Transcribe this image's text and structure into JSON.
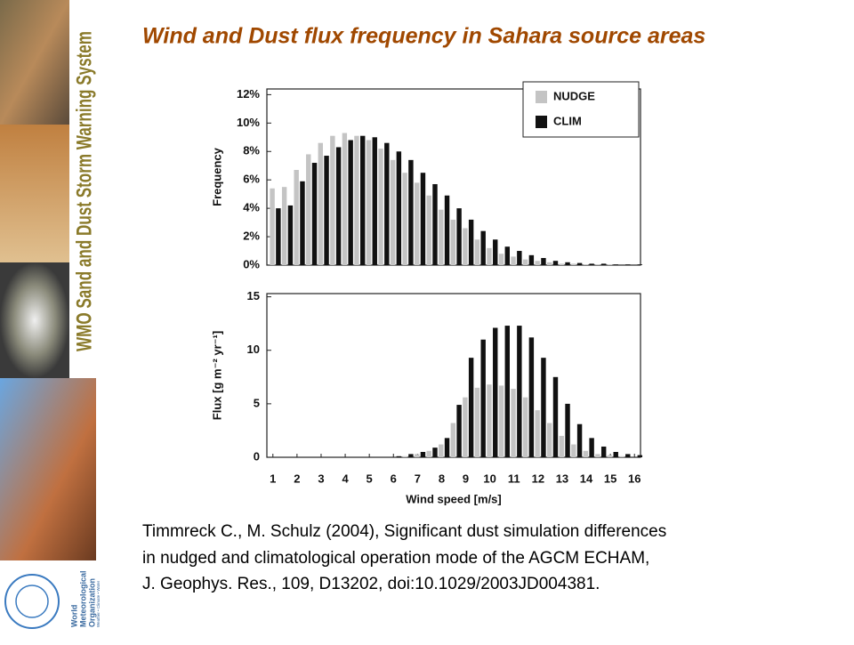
{
  "title": "Wind and Dust flux frequency in Sahara source areas",
  "banner": "WMO Sand and Dust Storm Warning System",
  "logo": {
    "name": [
      "World",
      "Meteorological",
      "Organization"
    ],
    "motto": "Weather • Climate • Water"
  },
  "citation": [
    "Timmreck C., M. Schulz (2004), Significant dust simulation differences",
    "in nudged and climatological operation mode of the AGCM ECHAM,",
    "J. Geophys. Res., 109, D13202, doi:10.1029/2003JD004381."
  ],
  "chart_data": [
    {
      "type": "bar",
      "ylabel": "Frequency",
      "x": [
        1,
        1.5,
        2,
        2.5,
        3,
        3.5,
        4,
        4.5,
        5,
        5.5,
        6,
        6.5,
        7,
        7.5,
        8,
        8.5,
        9,
        9.5,
        10,
        10.5,
        11,
        11.5,
        12,
        12.5,
        13,
        13.5,
        14,
        14.5,
        15,
        15.5,
        16
      ],
      "series": [
        {
          "name": "NUDGE",
          "color": "#c4c4c4",
          "values": [
            5.4,
            5.5,
            6.7,
            7.8,
            8.6,
            9.1,
            9.3,
            9.1,
            8.8,
            8.2,
            7.4,
            6.5,
            5.8,
            4.9,
            3.9,
            3.2,
            2.6,
            1.8,
            1.2,
            0.8,
            0.6,
            0.4,
            0.3,
            0.2,
            0.1,
            0.1,
            0.05,
            0.05,
            0.05,
            0,
            0
          ]
        },
        {
          "name": "CLIM",
          "color": "#111111",
          "values": [
            4.0,
            4.2,
            5.9,
            7.2,
            7.7,
            8.3,
            8.8,
            9.1,
            9.0,
            8.6,
            8.0,
            7.4,
            6.5,
            5.7,
            4.9,
            4.0,
            3.2,
            2.4,
            1.8,
            1.3,
            1.0,
            0.7,
            0.5,
            0.3,
            0.2,
            0.15,
            0.1,
            0.1,
            0.05,
            0.05,
            0.05
          ]
        }
      ],
      "xlim": [
        0.75,
        16.25
      ],
      "ylim": [
        0,
        12.4
      ],
      "yticks": [
        {
          "value": 0,
          "label": "0%"
        },
        {
          "value": 2,
          "label": "2%"
        },
        {
          "value": 4,
          "label": "4%"
        },
        {
          "value": 6,
          "label": "6%"
        },
        {
          "value": 8,
          "label": "8%"
        },
        {
          "value": 10,
          "label": "10%"
        },
        {
          "value": 12,
          "label": "12%"
        }
      ],
      "legend": "upper right"
    },
    {
      "type": "bar",
      "ylabel": "Flux [g m⁻² yr⁻¹]",
      "xlabel": "Wind speed [m/s]",
      "x": [
        1,
        1.5,
        2,
        2.5,
        3,
        3.5,
        4,
        4.5,
        5,
        5.5,
        6,
        6.5,
        7,
        7.5,
        8,
        8.5,
        9,
        9.5,
        10,
        10.5,
        11,
        11.5,
        12,
        12.5,
        13,
        13.5,
        14,
        14.5,
        15,
        15.5,
        16
      ],
      "series": [
        {
          "name": "NUDGE",
          "color": "#c4c4c4",
          "values": [
            0,
            0,
            0,
            0,
            0,
            0,
            0,
            0,
            0,
            0,
            0,
            0.1,
            0.3,
            0.6,
            1.2,
            3.2,
            5.6,
            6.5,
            6.8,
            6.7,
            6.4,
            5.6,
            4.4,
            3.2,
            2.0,
            1.2,
            0.6,
            0.3,
            0.2,
            0.1,
            0
          ]
        },
        {
          "name": "CLIM",
          "color": "#111111",
          "values": [
            0,
            0,
            0,
            0,
            0,
            0,
            0,
            0,
            0,
            0,
            0.1,
            0.3,
            0.5,
            0.9,
            1.8,
            4.9,
            9.3,
            11.0,
            12.1,
            12.3,
            12.3,
            11.2,
            9.3,
            7.5,
            5.0,
            3.1,
            1.8,
            1.0,
            0.5,
            0.3,
            0.2
          ]
        }
      ],
      "xlim": [
        0.75,
        16.25
      ],
      "ylim": [
        0,
        15.3
      ],
      "xticks": [
        1,
        2,
        3,
        4,
        5,
        6,
        7,
        8,
        9,
        10,
        11,
        12,
        13,
        14,
        15,
        16
      ],
      "yticks": [
        0,
        5,
        10,
        15
      ]
    }
  ]
}
